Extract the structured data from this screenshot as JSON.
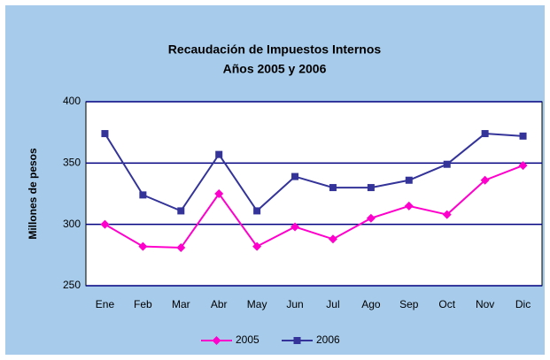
{
  "chart_data": {
    "type": "line",
    "title": "Recaudación de Impuestos Internos",
    "subtitle": "Años 2005 y 2006",
    "ylabel": "Millones de pesos",
    "categories": [
      "Ene",
      "Feb",
      "Mar",
      "Abr",
      "May",
      "Jun",
      "Jul",
      "Ago",
      "Sep",
      "Oct",
      "Nov",
      "Dic"
    ],
    "series": [
      {
        "name": "2005",
        "color": "#ff00cc",
        "marker": "diamond",
        "values": [
          300,
          282,
          281,
          325,
          282,
          298,
          288,
          305,
          315,
          308,
          336,
          348
        ]
      },
      {
        "name": "2006",
        "color": "#333399",
        "marker": "square",
        "values": [
          374,
          324,
          311,
          357,
          311,
          339,
          330,
          330,
          336,
          349,
          374,
          372
        ]
      }
    ],
    "ylim": [
      250,
      400
    ],
    "yticks": [
      250,
      300,
      350,
      400
    ],
    "grid": true,
    "legend": "bottom"
  }
}
